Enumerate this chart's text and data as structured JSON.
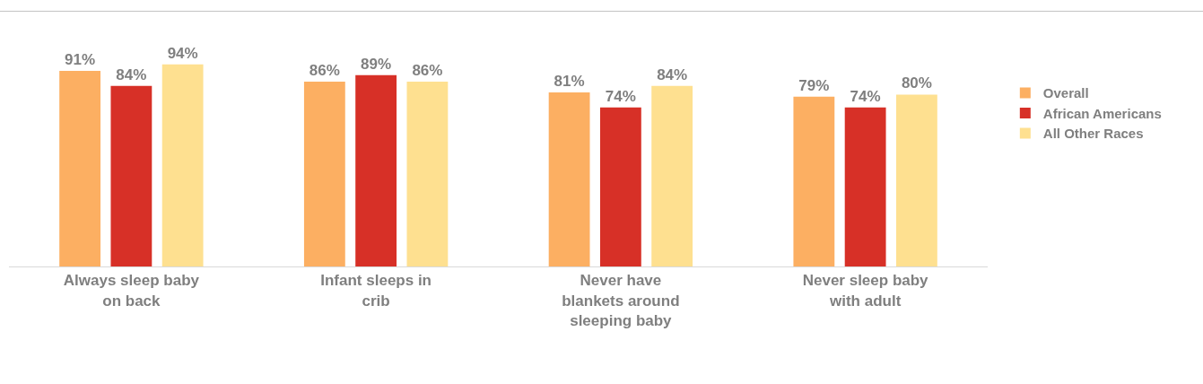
{
  "chart_data": {
    "type": "bar",
    "categories": [
      "Always sleep baby on back",
      "Infant sleeps in crib",
      "Never have blankets around sleeping baby",
      "Never sleep baby with adult"
    ],
    "series": [
      {
        "name": "Overall",
        "color": "#fcaf62",
        "values": [
          91,
          86,
          81,
          79
        ],
        "value_labels": [
          "91%",
          "86%",
          "81%",
          "79%"
        ]
      },
      {
        "name": "African Americans",
        "color": "#d73027",
        "values": [
          84,
          89,
          74,
          74
        ],
        "value_labels": [
          "84%",
          "89%",
          "74%",
          "74%"
        ]
      },
      {
        "name": "All Other Races",
        "color": "#fee090",
        "values": [
          94,
          86,
          84,
          80
        ],
        "value_labels": [
          "94%",
          "86%",
          "84%",
          "80%"
        ]
      }
    ],
    "legend": "right"
  }
}
